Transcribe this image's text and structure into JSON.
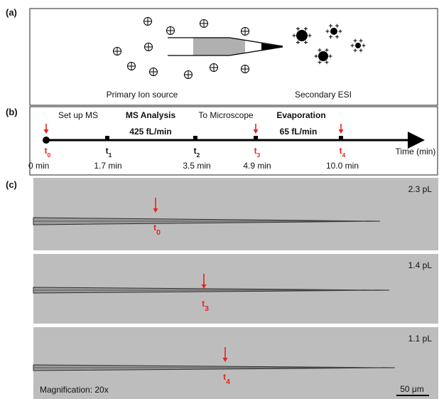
{
  "panel_a": {
    "label": "(a)",
    "left_caption": "Primary Ion source",
    "right_caption": "Secondary ESI"
  },
  "panel_b": {
    "label": "(b)",
    "stages": [
      "Set up MS",
      "MS Analysis",
      "To Microscope",
      "Evaporation"
    ],
    "rates": [
      "425 fL/min",
      "65 fL/min"
    ],
    "axis_label": "Time (min)",
    "points": [
      {
        "symbol": "t",
        "index": "0",
        "time": "0 min"
      },
      {
        "symbol": "t",
        "index": "1",
        "time": "1.7 min"
      },
      {
        "symbol": "t",
        "index": "2",
        "time": "3.5 min"
      },
      {
        "symbol": "t",
        "index": "3",
        "time": "4.9 min"
      },
      {
        "symbol": "t",
        "index": "4",
        "time": "10.0 min"
      }
    ]
  },
  "panel_c": {
    "label": "(c)",
    "frames": [
      {
        "volume": "2.3 pL",
        "symbol": "t",
        "index": "0"
      },
      {
        "volume": "1.4 pL",
        "symbol": "t",
        "index": "3"
      },
      {
        "volume": "1.1 pL",
        "symbol": "t",
        "index": "4"
      }
    ],
    "magnification": "Magnification: 20x",
    "scale_bar": "50 μm"
  }
}
